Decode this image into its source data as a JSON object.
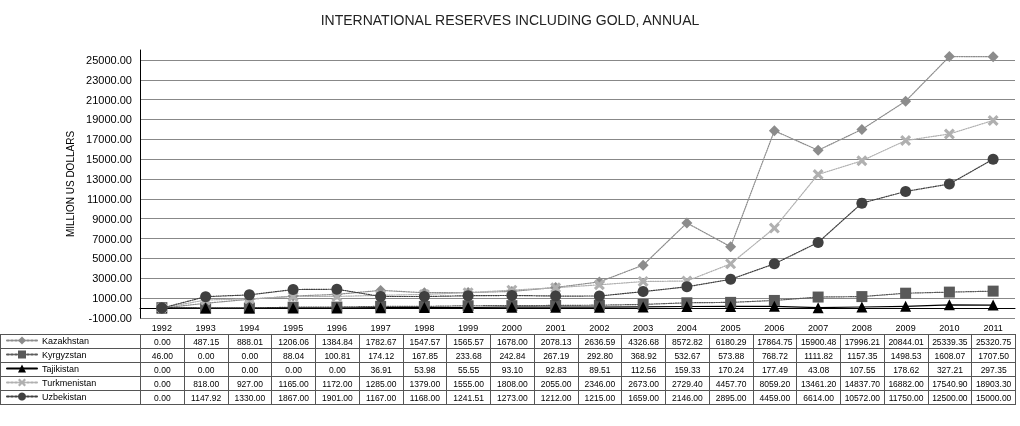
{
  "chart_data": {
    "type": "line",
    "title": "INTERNATIONAL RESERVES INCLUDING GOLD, ANNUAL",
    "ylabel": "MILLION US DOLLARS",
    "categories": [
      "1992",
      "1993",
      "1994",
      "1995",
      "1996",
      "1997",
      "1998",
      "1999",
      "2000",
      "2001",
      "2002",
      "2003",
      "2004",
      "2005",
      "2006",
      "2007",
      "2008",
      "2009",
      "2010",
      "2011"
    ],
    "ylim": [
      -1000,
      26000
    ],
    "yticks": [
      {
        "value": -1000,
        "label": "-1000.00"
      },
      {
        "value": 1000,
        "label": "1000.00"
      },
      {
        "value": 3000,
        "label": "3000.00"
      },
      {
        "value": 5000,
        "label": "5000.00"
      },
      {
        "value": 7000,
        "label": "7000.00"
      },
      {
        "value": 9000,
        "label": "9000.00"
      },
      {
        "value": 11000,
        "label": "11000.00"
      },
      {
        "value": 13000,
        "label": "13000.00"
      },
      {
        "value": 15000,
        "label": "15000.00"
      },
      {
        "value": 17000,
        "label": "17000.00"
      },
      {
        "value": 19000,
        "label": "19000.00"
      },
      {
        "value": 21000,
        "label": "21000.00"
      },
      {
        "value": 23000,
        "label": "23000.00"
      },
      {
        "value": 25000,
        "label": "25000.00"
      }
    ],
    "grid": "y",
    "legend": "bottom",
    "series": [
      {
        "name": "Kazakhstan",
        "color": "#8c8c8c",
        "marker": "diamond",
        "line_style": "dotted",
        "values": [
          0,
          487.15,
          888.01,
          1206.06,
          1384.84,
          1782.67,
          1547.57,
          1565.57,
          1678,
          2078.13,
          2636.59,
          4326.68,
          8572.82,
          6180.29,
          17864.75,
          15900.48,
          17996.21,
          20844.01,
          25339.35,
          25320.75
        ],
        "value_labels": [
          "0.00",
          "487.15",
          "888.01",
          "1206.06",
          "1384.84",
          "1782.67",
          "1547.57",
          "1565.57",
          "1678.00",
          "2078.13",
          "2636.59",
          "4326.68",
          "8572.82",
          "6180.29",
          "17864.75",
          "15900.48",
          "17996.21",
          "20844.01",
          "25339.35",
          "25320.75"
        ]
      },
      {
        "name": "Kyrgyzstan",
        "color": "#595959",
        "marker": "square",
        "line_style": "dotted",
        "values": [
          46,
          0,
          0,
          88.04,
          100.81,
          174.12,
          167.85,
          233.68,
          242.84,
          267.19,
          292.8,
          368.92,
          532.67,
          573.88,
          768.72,
          1111.82,
          1157.35,
          1498.53,
          1608.07,
          1707.5
        ],
        "value_labels": [
          "46.00",
          "0.00",
          "0.00",
          "88.04",
          "100.81",
          "174.12",
          "167.85",
          "233.68",
          "242.84",
          "267.19",
          "292.80",
          "368.92",
          "532.67",
          "573.88",
          "768.72",
          "1111.82",
          "1157.35",
          "1498.53",
          "1608.07",
          "1707.50"
        ]
      },
      {
        "name": "Tajikistan",
        "color": "#000000",
        "marker": "triangle",
        "line_style": "solid",
        "values": [
          0,
          0,
          0,
          0,
          0,
          36.91,
          53.98,
          55.55,
          93.1,
          92.83,
          89.51,
          112.56,
          159.33,
          170.24,
          177.49,
          43.08,
          107.55,
          178.62,
          327.21,
          297.35
        ],
        "value_labels": [
          "0.00",
          "0.00",
          "0.00",
          "0.00",
          "0.00",
          "36.91",
          "53.98",
          "55.55",
          "93.10",
          "92.83",
          "89.51",
          "112.56",
          "159.33",
          "170.24",
          "177.49",
          "43.08",
          "107.55",
          "178.62",
          "327.21",
          "297.35"
        ]
      },
      {
        "name": "Turkmenistan",
        "color": "#b0b0b0",
        "marker": "cross",
        "line_style": "dotted",
        "values": [
          0,
          818,
          927,
          1165,
          1172,
          1285,
          1379,
          1555,
          1808,
          2055,
          2346,
          2673,
          2729.4,
          4457.7,
          8059.2,
          13461.2,
          14837.7,
          16882,
          17540.9,
          18903.3
        ],
        "value_labels": [
          "0.00",
          "818.00",
          "927.00",
          "1165.00",
          "1172.00",
          "1285.00",
          "1379.00",
          "1555.00",
          "1808.00",
          "2055.00",
          "2346.00",
          "2673.00",
          "2729.40",
          "4457.70",
          "8059.20",
          "13461.20",
          "14837.70",
          "16882.00",
          "17540.90",
          "18903.30"
        ]
      },
      {
        "name": "Uzbekistan",
        "color": "#404040",
        "marker": "circle",
        "line_style": "dotted",
        "values": [
          0,
          1147.92,
          1330,
          1867,
          1901,
          1167,
          1168,
          1241.51,
          1273,
          1212,
          1215,
          1659,
          2146,
          2895,
          4459,
          6614,
          10572,
          11750,
          12500,
          15000
        ],
        "value_labels": [
          "0.00",
          "1147.92",
          "1330.00",
          "1867.00",
          "1901.00",
          "1167.00",
          "1168.00",
          "1241.51",
          "1273.00",
          "1212.00",
          "1215.00",
          "1659.00",
          "2146.00",
          "2895.00",
          "4459.00",
          "6614.00",
          "10572.00",
          "11750.00",
          "12500.00",
          "15000.00"
        ]
      }
    ]
  }
}
